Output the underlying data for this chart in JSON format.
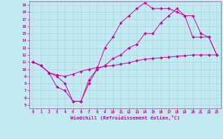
{
  "xlabel": "Windchill (Refroidissement éolien,°C)",
  "bg_color": "#c2eaf0",
  "grid_color": "#a8d8e0",
  "line_color": "#cc00aa",
  "spine_color": "#8866aa",
  "xlim": [
    -0.5,
    23.5
  ],
  "ylim": [
    4.5,
    19.5
  ],
  "xticks": [
    0,
    1,
    2,
    3,
    4,
    5,
    6,
    7,
    8,
    9,
    10,
    11,
    12,
    13,
    14,
    15,
    16,
    17,
    18,
    19,
    20,
    21,
    22,
    23
  ],
  "yticks": [
    5,
    6,
    7,
    8,
    9,
    10,
    11,
    12,
    13,
    14,
    15,
    16,
    17,
    18,
    19
  ],
  "line1_x": [
    0,
    1,
    2,
    3,
    4,
    5,
    6,
    7,
    8,
    9,
    10,
    11,
    12,
    13,
    14,
    15,
    16,
    17,
    18,
    19,
    20,
    21,
    22,
    23
  ],
  "line1_y": [
    11,
    10.5,
    9.5,
    9.2,
    9.0,
    9.3,
    9.7,
    10.0,
    10.2,
    10.4,
    10.5,
    10.7,
    10.9,
    11.2,
    11.4,
    11.5,
    11.6,
    11.7,
    11.8,
    11.9,
    12.0,
    12.0,
    12.0,
    12.0
  ],
  "line2_x": [
    0,
    1,
    2,
    3,
    4,
    5,
    6,
    7,
    8,
    9,
    10,
    11,
    12,
    13,
    14,
    15,
    16,
    17,
    18,
    19,
    20,
    21,
    22,
    23
  ],
  "line2_y": [
    11,
    10.5,
    9.5,
    7.5,
    7.0,
    5.5,
    5.5,
    8.0,
    10.0,
    13.0,
    14.5,
    16.5,
    17.5,
    18.5,
    19.3,
    18.5,
    18.5,
    18.5,
    18.0,
    17.5,
    14.5,
    14.5,
    14.5,
    12.0
  ],
  "line3_x": [
    0,
    1,
    2,
    3,
    4,
    5,
    6,
    7,
    8,
    9,
    10,
    11,
    12,
    13,
    14,
    15,
    16,
    17,
    18,
    19,
    20,
    21,
    22,
    23
  ],
  "line3_y": [
    11,
    10.5,
    9.5,
    9.0,
    8.0,
    5.5,
    5.5,
    8.5,
    10.0,
    10.5,
    11.5,
    12.0,
    13.0,
    13.5,
    15.0,
    15.0,
    16.5,
    17.5,
    18.5,
    17.5,
    17.5,
    15.0,
    14.5,
    12.0
  ]
}
